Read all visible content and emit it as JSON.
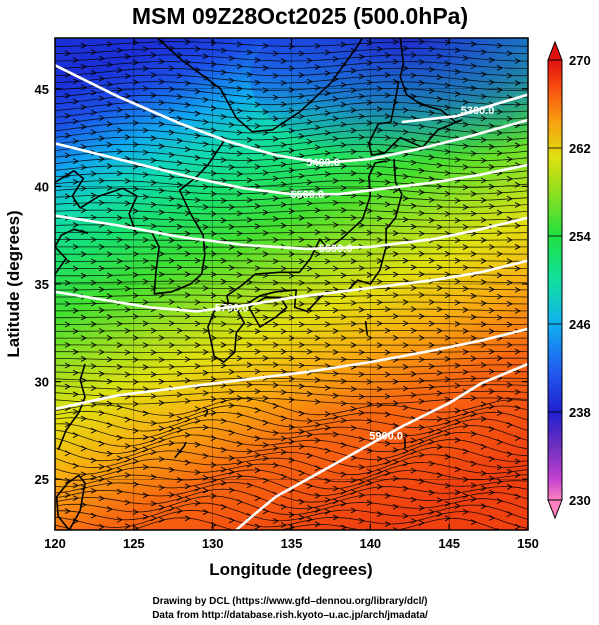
{
  "chart_data": {
    "type": "heatmap",
    "title": "MSM 09Z28Oct2025 (500.0hPa)",
    "xlabel": "Longitude (degrees)",
    "ylabel": "Latitude  (degrees)",
    "xlim": [
      120,
      150
    ],
    "ylim": [
      22.4,
      47.6
    ],
    "x_ticks": [
      120,
      125,
      130,
      135,
      140,
      145,
      150
    ],
    "y_ticks": [
      25,
      30,
      35,
      40,
      45
    ],
    "colorbar": {
      "min": 230,
      "max": 270,
      "ticks": [
        230,
        238,
        246,
        254,
        262,
        270
      ]
    },
    "shading": "temperature",
    "streamlines": "wind",
    "contours": [
      {
        "value": "5300.0",
        "points": [
          [
            142.0,
            43.3
          ],
          [
            145.5,
            43.6
          ],
          [
            147.5,
            44.1
          ],
          [
            150,
            44.7
          ]
        ]
      },
      {
        "value": "5400.0",
        "points": [
          [
            120,
            46.2
          ],
          [
            124,
            44.6
          ],
          [
            128,
            43.2
          ],
          [
            131,
            42.3
          ],
          [
            134,
            41.6
          ],
          [
            137,
            41.2
          ],
          [
            140,
            41.4
          ],
          [
            143,
            41.9
          ],
          [
            146,
            42.5
          ],
          [
            150,
            43.4
          ]
        ]
      },
      {
        "value": "5500.0",
        "points": [
          [
            120,
            42.2
          ],
          [
            123,
            41.6
          ],
          [
            126,
            41.0
          ],
          [
            129,
            40.4
          ],
          [
            132,
            39.9
          ],
          [
            135,
            39.6
          ],
          [
            138,
            39.6
          ],
          [
            141,
            39.9
          ],
          [
            144,
            40.2
          ],
          [
            147,
            40.6
          ],
          [
            150,
            41.1
          ]
        ]
      },
      {
        "value": "5600.0",
        "points": [
          [
            120,
            38.5
          ],
          [
            124,
            38.0
          ],
          [
            128,
            37.4
          ],
          [
            132,
            37.0
          ],
          [
            136,
            36.8
          ],
          [
            140,
            36.9
          ],
          [
            144,
            37.3
          ],
          [
            147,
            37.8
          ],
          [
            150,
            38.4
          ]
        ]
      },
      {
        "value": "5700.0",
        "points": [
          [
            120,
            34.6
          ],
          [
            123,
            34.2
          ],
          [
            126,
            33.8
          ],
          [
            129,
            33.6
          ],
          [
            132,
            33.9
          ],
          [
            135,
            34.3
          ],
          [
            138,
            34.6
          ],
          [
            141,
            34.9
          ],
          [
            144,
            35.2
          ],
          [
            147,
            35.6
          ],
          [
            150,
            36.2
          ]
        ]
      },
      {
        "value": "5800.0",
        "points": [
          [
            120,
            28.6
          ],
          [
            124,
            29.3
          ],
          [
            128,
            29.7
          ],
          [
            132,
            30.1
          ],
          [
            136,
            30.5
          ],
          [
            140,
            31.0
          ],
          [
            144,
            31.6
          ],
          [
            147,
            32.1
          ],
          [
            150,
            32.7
          ]
        ]
      },
      {
        "value": "5900.0",
        "points": [
          [
            131.5,
            22.4
          ],
          [
            132.5,
            23.1
          ],
          [
            134,
            24.1
          ],
          [
            136,
            25.0
          ],
          [
            138,
            25.9
          ],
          [
            140,
            26.8
          ],
          [
            142,
            27.7
          ],
          [
            145,
            28.9
          ],
          [
            147,
            29.9
          ],
          [
            150,
            30.9
          ]
        ]
      }
    ],
    "contour_labels": [
      {
        "text": "5300.0",
        "x": 146.8,
        "y": 43.9
      },
      {
        "text": "5400.0",
        "x": 137.0,
        "y": 41.25
      },
      {
        "text": "5500.0",
        "x": 136.0,
        "y": 39.6
      },
      {
        "text": "5600.0",
        "x": 137.8,
        "y": 36.85
      },
      {
        "text": "5700.0",
        "x": 131.2,
        "y": 33.8
      },
      {
        "text": "5900.0",
        "x": 141.0,
        "y": 27.25
      }
    ]
  },
  "credits": {
    "line1": "Drawing by DCL (https://www.gfd–dennou.org/library/dcl/)",
    "line2": "Data from http://database.rish.kyoto–u.ac.jp/arch/jmadata/"
  }
}
